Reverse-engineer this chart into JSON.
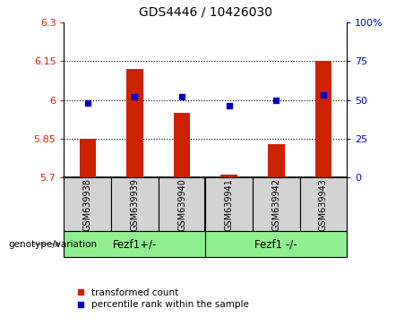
{
  "title": "GDS4446 / 10426030",
  "samples": [
    "GSM639938",
    "GSM639939",
    "GSM639940",
    "GSM639941",
    "GSM639942",
    "GSM639943"
  ],
  "bar_values": [
    5.85,
    6.12,
    5.95,
    5.71,
    5.83,
    6.15
  ],
  "bar_bottom": 5.7,
  "percentile_values": [
    48,
    52,
    52,
    46,
    50,
    53
  ],
  "ylim_left": [
    5.7,
    6.3
  ],
  "ylim_right": [
    0,
    100
  ],
  "yticks_left": [
    5.7,
    5.85,
    6.0,
    6.15,
    6.3
  ],
  "yticks_right": [
    0,
    25,
    50,
    75,
    100
  ],
  "ytick_labels_left": [
    "5.7",
    "5.85",
    "6",
    "6.15",
    "6.3"
  ],
  "ytick_labels_right": [
    "0",
    "25",
    "50",
    "75",
    "100%"
  ],
  "hlines": [
    5.85,
    6.0,
    6.15
  ],
  "bar_color": "#cc2200",
  "dot_color": "#0000cc",
  "group1_label": "Fezf1+/-",
  "group2_label": "Fezf1 -/-",
  "group1_indices": [
    0,
    1,
    2
  ],
  "group2_indices": [
    3,
    4,
    5
  ],
  "genotype_label": "genotype/variation",
  "legend_items": [
    "transformed count",
    "percentile rank within the sample"
  ],
  "group_bg_color": "#90EE90",
  "sample_bg_color": "#d3d3d3",
  "title_fontsize": 10,
  "tick_fontsize": 8,
  "group_fontsize": 8.5,
  "legend_fontsize": 7.5
}
